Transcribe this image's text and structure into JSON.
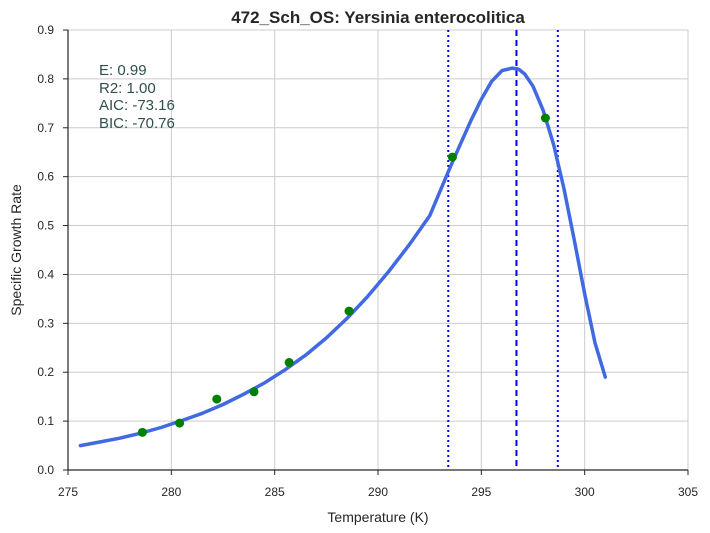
{
  "chart_data": {
    "type": "scatter",
    "title": "472_Sch_OS: Yersinia enterocolitica",
    "xlabel": "Temperature (K)",
    "ylabel": "Specific Growth Rate",
    "xlim": [
      275,
      305
    ],
    "ylim": [
      0,
      0.9
    ],
    "xticks": [
      275,
      280,
      285,
      290,
      295,
      300,
      305
    ],
    "xtick_labels": [
      "275",
      "280",
      "285",
      "290",
      "295",
      "300",
      "305"
    ],
    "yticks": [
      0.0,
      0.1,
      0.2,
      0.3,
      0.4,
      0.5,
      0.6,
      0.7,
      0.8,
      0.9
    ],
    "ytick_labels": [
      "0.0",
      "0.1",
      "0.2",
      "0.3",
      "0.4",
      "0.5",
      "0.6",
      "0.7",
      "0.8",
      "0.9"
    ],
    "grid": true,
    "stats": [
      "E:  0.99",
      "R2:  1.00",
      "AIC: -73.16",
      "BIC: -70.76"
    ],
    "observed_points": {
      "color": "#008000",
      "x": [
        278.6,
        280.4,
        282.2,
        284.0,
        285.7,
        288.6,
        293.6,
        298.1
      ],
      "y": [
        0.077,
        0.096,
        0.145,
        0.16,
        0.22,
        0.325,
        0.64,
        0.72
      ]
    },
    "fitted_curve": {
      "color": "#4169e1",
      "x": [
        275.6,
        276.5,
        277.5,
        278.5,
        279.5,
        280.5,
        281.5,
        282.5,
        283.5,
        284.5,
        285.5,
        286.5,
        287.5,
        288.5,
        289.5,
        290.5,
        291.5,
        292.5,
        293.5,
        294.0,
        294.5,
        295.0,
        295.5,
        296.0,
        296.5,
        296.8,
        297.1,
        297.5,
        298.0,
        298.5,
        299.0,
        299.5,
        300.0,
        300.5,
        301.0
      ],
      "y": [
        0.05,
        0.057,
        0.065,
        0.075,
        0.087,
        0.101,
        0.116,
        0.134,
        0.155,
        0.178,
        0.205,
        0.235,
        0.27,
        0.31,
        0.355,
        0.405,
        0.46,
        0.52,
        0.62,
        0.668,
        0.715,
        0.758,
        0.795,
        0.817,
        0.822,
        0.82,
        0.81,
        0.785,
        0.735,
        0.665,
        0.575,
        0.47,
        0.36,
        0.26,
        0.19
      ]
    },
    "reference_lines": [
      {
        "x": 293.4,
        "style": "dotted",
        "color": "#0000ff"
      },
      {
        "x": 296.7,
        "style": "dashed",
        "color": "#0000ff"
      },
      {
        "x": 298.7,
        "style": "dotted",
        "color": "#0000ff"
      }
    ],
    "colors": {
      "axis": "#262626",
      "grid": "#cccccc",
      "stats_text": "#2f4f4f"
    }
  }
}
